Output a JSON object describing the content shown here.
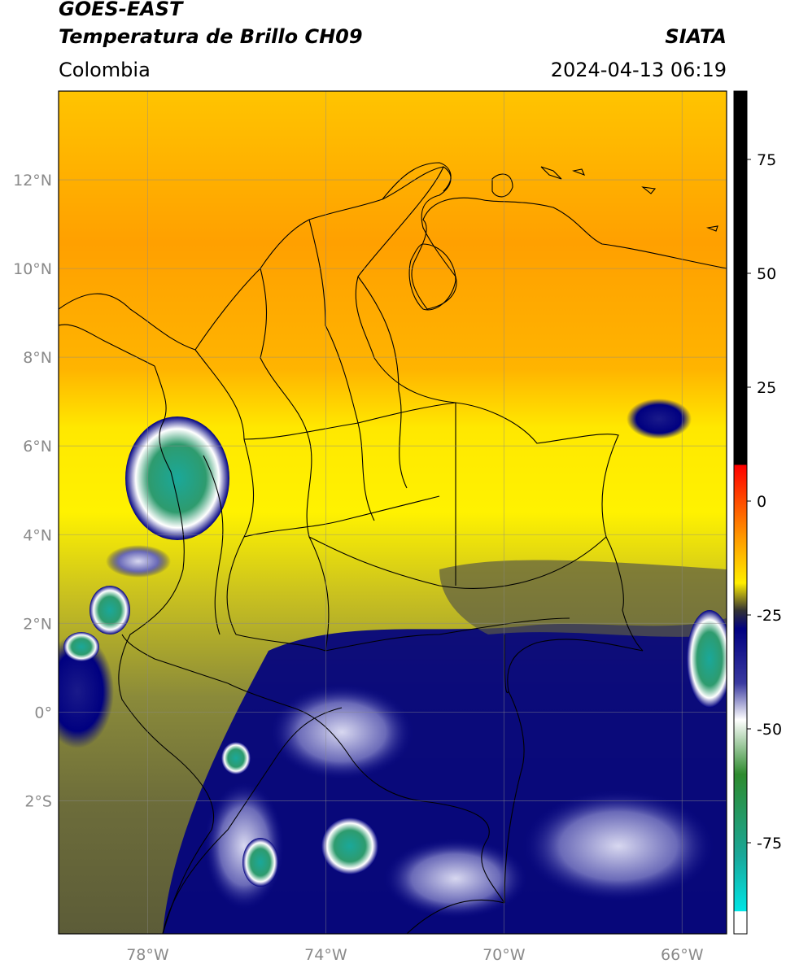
{
  "header": {
    "title_line1": "GOES-EAST",
    "title_line2": "Temperatura de Brillo CH09",
    "brand": "SIATA",
    "region": "Colombia",
    "datetime": "2024-04-13 06:19"
  },
  "map": {
    "lon_range": [
      -80,
      -65
    ],
    "lat_range": [
      -5,
      14
    ],
    "lon_ticks": [
      {
        "value": -78,
        "label": "78°W"
      },
      {
        "value": -74,
        "label": "74°W"
      },
      {
        "value": -70,
        "label": "70°W"
      },
      {
        "value": -66,
        "label": "66°W"
      }
    ],
    "lat_ticks": [
      {
        "value": 12,
        "label": "12°N"
      },
      {
        "value": 10,
        "label": "10°N"
      },
      {
        "value": 8,
        "label": "8°N"
      },
      {
        "value": 6,
        "label": "6°N"
      },
      {
        "value": 4,
        "label": "4°N"
      },
      {
        "value": 2,
        "label": "2°N"
      },
      {
        "value": 0,
        "label": "0°"
      },
      {
        "value": -2,
        "label": "2°S"
      }
    ],
    "grid": true
  },
  "colorbar": {
    "range": [
      -95,
      90
    ],
    "ticks": [
      {
        "value": 75,
        "label": "75"
      },
      {
        "value": 50,
        "label": "50"
      },
      {
        "value": 25,
        "label": "25"
      },
      {
        "value": 0,
        "label": "0"
      },
      {
        "value": -25,
        "label": "-25"
      },
      {
        "value": -50,
        "label": "-50"
      },
      {
        "value": -75,
        "label": "-75"
      }
    ],
    "stops": [
      {
        "value": 90,
        "color": "#000000"
      },
      {
        "value": 8,
        "color": "#000000"
      },
      {
        "value": 7.9,
        "color": "#ff0000"
      },
      {
        "value": -8,
        "color": "#ff9900"
      },
      {
        "value": -18,
        "color": "#ffee00"
      },
      {
        "value": -24,
        "color": "#333333"
      },
      {
        "value": -28,
        "color": "#000080"
      },
      {
        "value": -40,
        "color": "#3a3aa0"
      },
      {
        "value": -48,
        "color": "#ffffff"
      },
      {
        "value": -60,
        "color": "#2e8b2e"
      },
      {
        "value": -78,
        "color": "#1aa89a"
      },
      {
        "value": -90,
        "color": "#00e5e5"
      },
      {
        "value": -90.1,
        "color": "#ffffff"
      },
      {
        "value": -95,
        "color": "#ffffff"
      }
    ]
  }
}
